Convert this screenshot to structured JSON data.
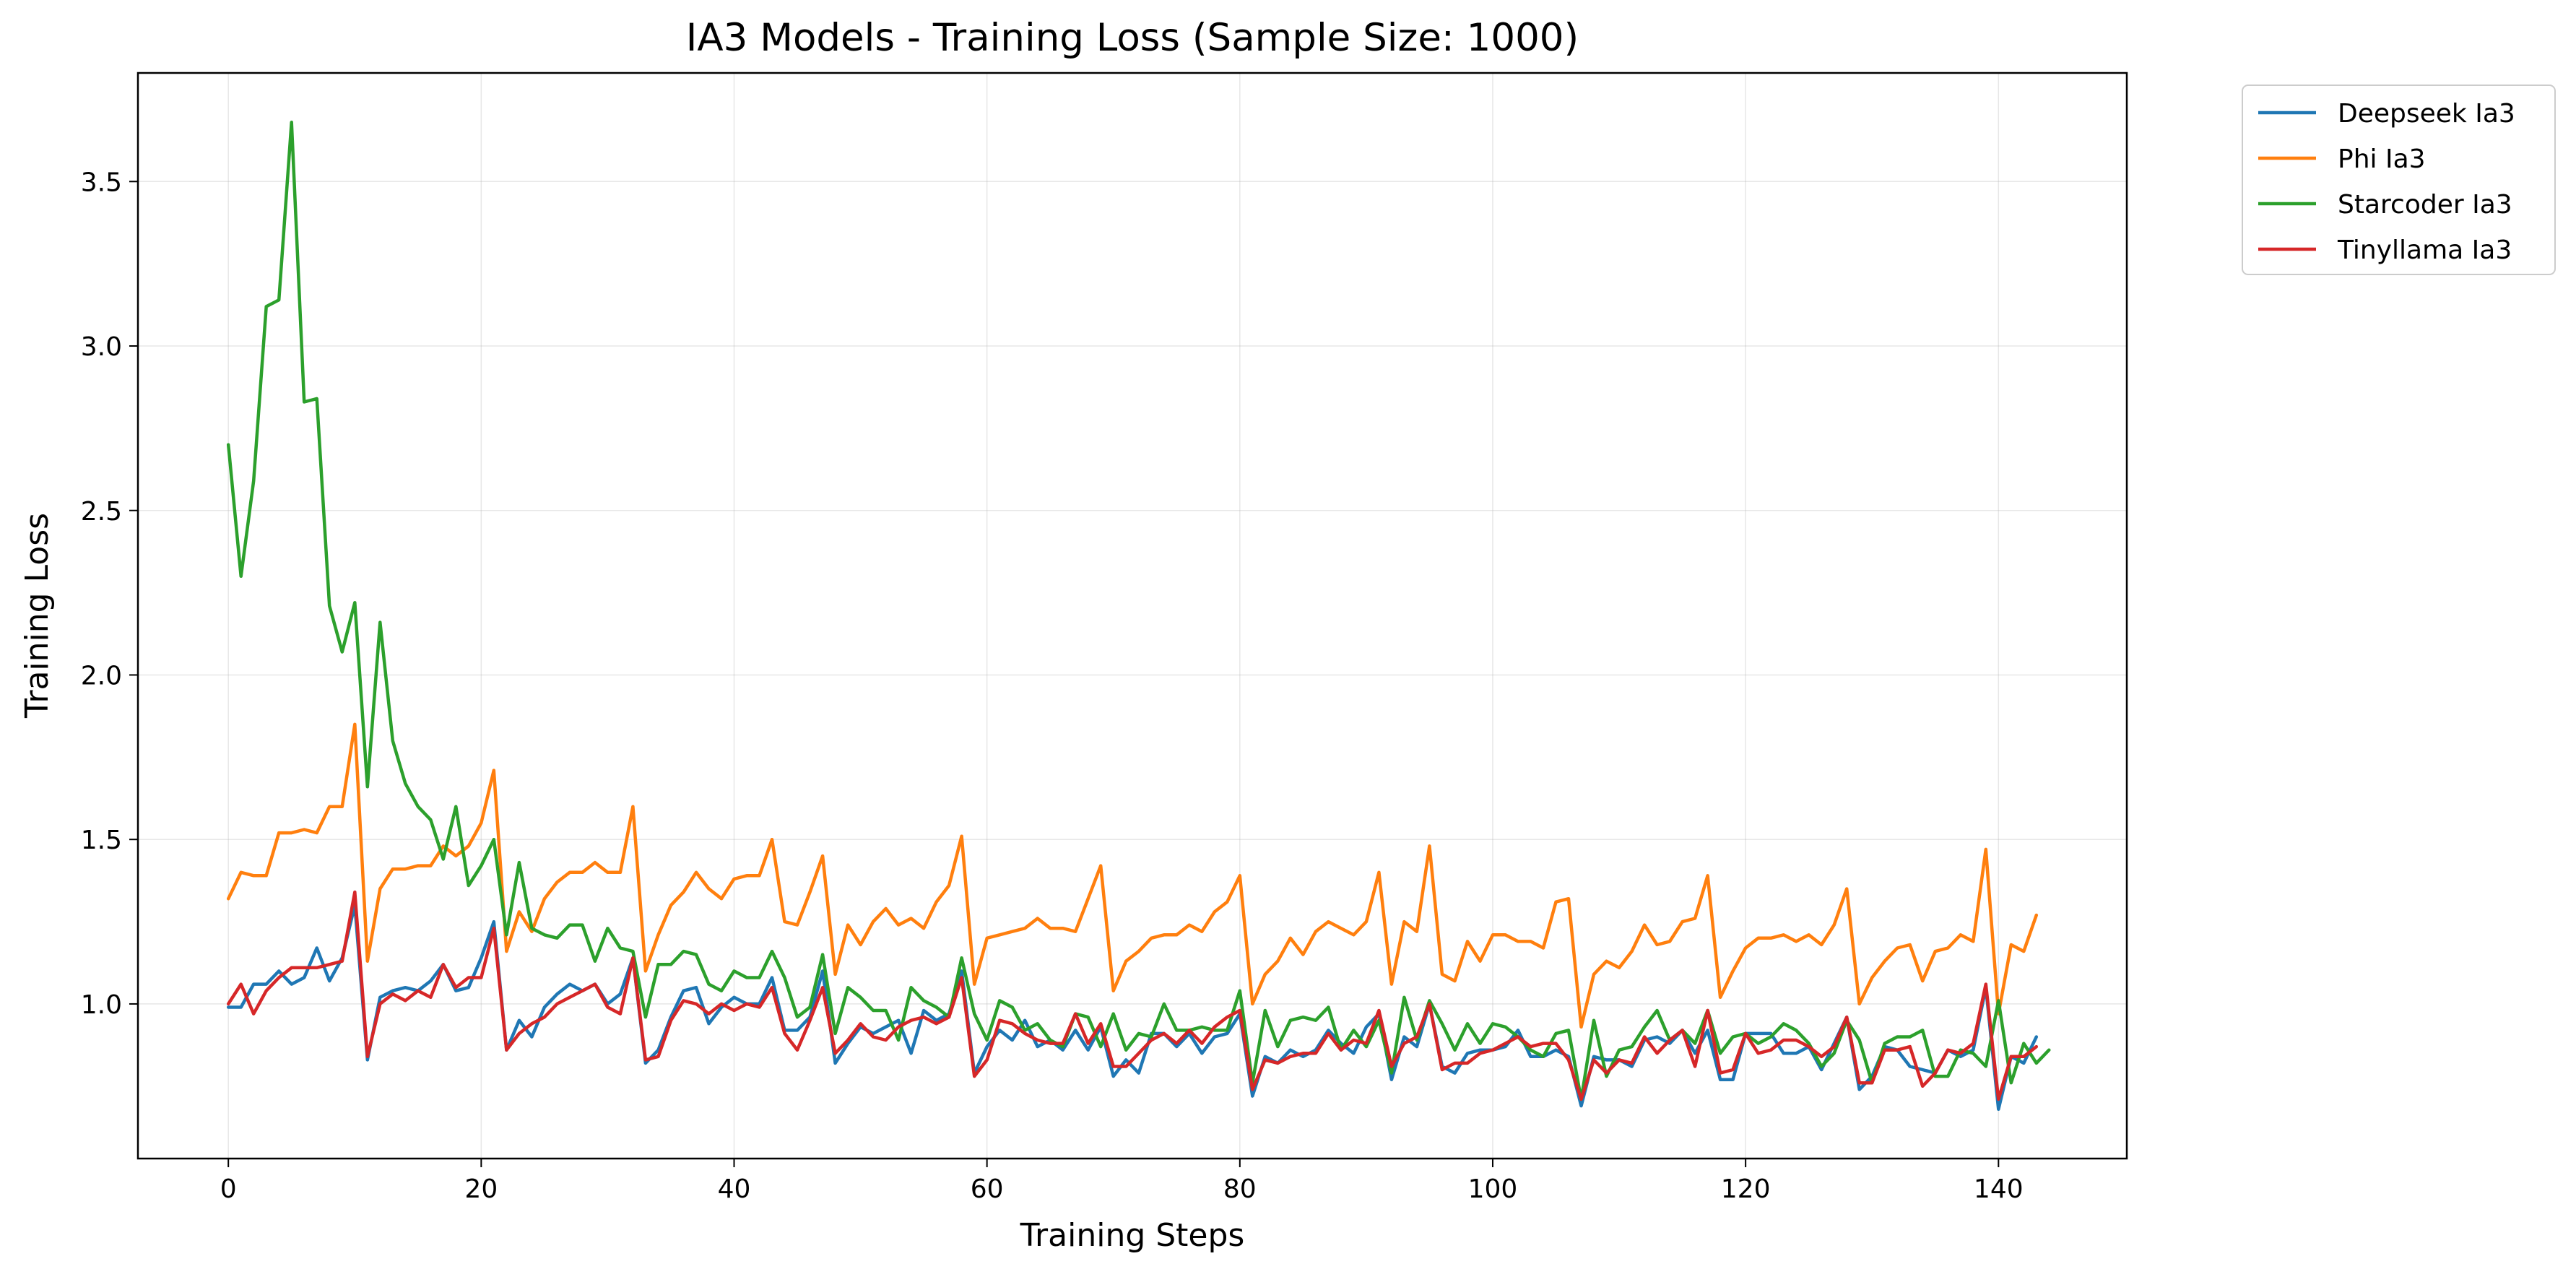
{
  "chart_data": {
    "type": "line",
    "title": "IA3 Models - Training Loss (Sample Size: 1000)",
    "xlabel": "Training Steps",
    "ylabel": "Training Loss",
    "xlim": [
      -7.15,
      150.15
    ],
    "ylim": [
      0.53,
      3.83
    ],
    "xticks": [
      0,
      20,
      40,
      60,
      80,
      100,
      120,
      140
    ],
    "yticks": [
      1.0,
      1.5,
      2.0,
      2.5,
      3.0,
      3.5
    ],
    "ytick_labels": [
      "1.0",
      "1.5",
      "2.0",
      "2.5",
      "3.0",
      "3.5"
    ],
    "grid": true,
    "legend_position": "outside top-right",
    "series": [
      {
        "name": "Deepseek Ia3",
        "color": "#1f77b4",
        "values": [
          0.99,
          0.99,
          1.06,
          1.06,
          1.1,
          1.06,
          1.08,
          1.17,
          1.07,
          1.14,
          1.3,
          0.83,
          1.02,
          1.04,
          1.05,
          1.04,
          1.07,
          1.12,
          1.04,
          1.05,
          1.14,
          1.25,
          0.86,
          0.95,
          0.9,
          0.99,
          1.03,
          1.06,
          1.04,
          1.06,
          1.0,
          1.03,
          1.14,
          0.82,
          0.86,
          0.96,
          1.04,
          1.05,
          0.94,
          0.99,
          1.02,
          1.0,
          1.0,
          1.08,
          0.92,
          0.92,
          0.96,
          1.1,
          0.82,
          0.88,
          0.93,
          0.91,
          0.93,
          0.95,
          0.85,
          0.98,
          0.95,
          0.97,
          1.1,
          0.79,
          0.87,
          0.92,
          0.89,
          0.95,
          0.87,
          0.89,
          0.86,
          0.92,
          0.86,
          0.93,
          0.78,
          0.83,
          0.79,
          0.91,
          0.91,
          0.87,
          0.91,
          0.85,
          0.9,
          0.91,
          0.97,
          0.72,
          0.84,
          0.82,
          0.86,
          0.84,
          0.86,
          0.92,
          0.88,
          0.85,
          0.93,
          0.97,
          0.77,
          0.9,
          0.87,
          1.0,
          0.81,
          0.79,
          0.85,
          0.86,
          0.86,
          0.87,
          0.92,
          0.84,
          0.84,
          0.86,
          0.84,
          0.69,
          0.84,
          0.83,
          0.83,
          0.81,
          0.89,
          0.9,
          0.88,
          0.92,
          0.85,
          0.92,
          0.77,
          0.77,
          0.91,
          0.91,
          0.91,
          0.85,
          0.85,
          0.87,
          0.8,
          0.88,
          0.96,
          0.74,
          0.78,
          0.87,
          0.86,
          0.81,
          0.8,
          0.79,
          0.86,
          0.84,
          0.86,
          1.05,
          0.68,
          0.84,
          0.82,
          0.9
        ]
      },
      {
        "name": "Phi Ia3",
        "color": "#ff7f0e",
        "values": [
          1.32,
          1.4,
          1.39,
          1.39,
          1.52,
          1.52,
          1.53,
          1.52,
          1.6,
          1.6,
          1.85,
          1.13,
          1.35,
          1.41,
          1.41,
          1.42,
          1.42,
          1.48,
          1.45,
          1.48,
          1.55,
          1.71,
          1.16,
          1.28,
          1.22,
          1.32,
          1.37,
          1.4,
          1.4,
          1.43,
          1.4,
          1.4,
          1.6,
          1.1,
          1.21,
          1.3,
          1.34,
          1.4,
          1.35,
          1.32,
          1.38,
          1.39,
          1.39,
          1.5,
          1.25,
          1.24,
          1.34,
          1.45,
          1.09,
          1.24,
          1.18,
          1.25,
          1.29,
          1.24,
          1.26,
          1.23,
          1.31,
          1.36,
          1.51,
          1.06,
          1.2,
          1.21,
          1.22,
          1.23,
          1.26,
          1.23,
          1.23,
          1.22,
          1.32,
          1.42,
          1.04,
          1.13,
          1.16,
          1.2,
          1.21,
          1.21,
          1.24,
          1.22,
          1.28,
          1.31,
          1.39,
          1.0,
          1.09,
          1.13,
          1.2,
          1.15,
          1.22,
          1.25,
          1.23,
          1.21,
          1.25,
          1.4,
          1.06,
          1.25,
          1.22,
          1.48,
          1.09,
          1.07,
          1.19,
          1.13,
          1.21,
          1.21,
          1.19,
          1.19,
          1.17,
          1.31,
          1.32,
          0.93,
          1.09,
          1.13,
          1.11,
          1.16,
          1.24,
          1.18,
          1.19,
          1.25,
          1.26,
          1.39,
          1.02,
          1.1,
          1.17,
          1.2,
          1.2,
          1.21,
          1.19,
          1.21,
          1.18,
          1.24,
          1.35,
          1.0,
          1.08,
          1.13,
          1.17,
          1.18,
          1.07,
          1.16,
          1.17,
          1.21,
          1.19,
          1.47,
          0.97,
          1.18,
          1.16,
          1.27
        ]
      },
      {
        "name": "Starcoder Ia3",
        "color": "#2ca02c",
        "values": [
          2.7,
          2.3,
          2.59,
          3.12,
          3.14,
          3.68,
          2.83,
          2.84,
          2.21,
          2.07,
          2.22,
          1.66,
          2.16,
          1.8,
          1.67,
          1.6,
          1.56,
          1.44,
          1.6,
          1.36,
          1.42,
          1.5,
          1.21,
          1.43,
          1.23,
          1.21,
          1.2,
          1.24,
          1.24,
          1.13,
          1.23,
          1.17,
          1.16,
          0.96,
          1.12,
          1.12,
          1.16,
          1.15,
          1.06,
          1.04,
          1.1,
          1.08,
          1.08,
          1.16,
          1.08,
          0.96,
          0.99,
          1.15,
          0.91,
          1.05,
          1.02,
          0.98,
          0.98,
          0.89,
          1.05,
          1.01,
          0.99,
          0.96,
          1.14,
          0.97,
          0.89,
          1.01,
          0.99,
          0.92,
          0.94,
          0.89,
          0.87,
          0.97,
          0.96,
          0.87,
          0.97,
          0.86,
          0.91,
          0.9,
          1.0,
          0.92,
          0.92,
          0.93,
          0.92,
          0.92,
          1.04,
          0.76,
          0.98,
          0.87,
          0.95,
          0.96,
          0.95,
          0.99,
          0.86,
          0.92,
          0.87,
          0.95,
          0.79,
          1.02,
          0.89,
          1.01,
          0.94,
          0.86,
          0.94,
          0.88,
          0.94,
          0.93,
          0.9,
          0.86,
          0.84,
          0.91,
          0.92,
          0.71,
          0.95,
          0.78,
          0.86,
          0.87,
          0.93,
          0.98,
          0.89,
          0.92,
          0.88,
          0.98,
          0.85,
          0.9,
          0.91,
          0.88,
          0.9,
          0.94,
          0.92,
          0.88,
          0.81,
          0.85,
          0.95,
          0.89,
          0.76,
          0.88,
          0.9,
          0.9,
          0.92,
          0.78,
          0.78,
          0.86,
          0.85,
          0.81,
          1.01,
          0.76,
          0.88,
          0.82,
          0.86
        ]
      },
      {
        "name": "Tinyllama Ia3",
        "color": "#d62728",
        "values": [
          1.0,
          1.06,
          0.97,
          1.04,
          1.08,
          1.11,
          1.11,
          1.11,
          1.12,
          1.13,
          1.34,
          0.84,
          1.0,
          1.03,
          1.01,
          1.04,
          1.02,
          1.12,
          1.05,
          1.08,
          1.08,
          1.23,
          0.86,
          0.91,
          0.94,
          0.96,
          1.0,
          1.02,
          1.04,
          1.06,
          0.99,
          0.97,
          1.14,
          0.83,
          0.84,
          0.95,
          1.01,
          1.0,
          0.97,
          1.0,
          0.98,
          1.0,
          0.99,
          1.05,
          0.91,
          0.86,
          0.95,
          1.05,
          0.85,
          0.89,
          0.94,
          0.9,
          0.89,
          0.93,
          0.95,
          0.96,
          0.94,
          0.96,
          1.08,
          0.78,
          0.83,
          0.95,
          0.94,
          0.91,
          0.89,
          0.88,
          0.88,
          0.97,
          0.88,
          0.94,
          0.81,
          0.81,
          0.85,
          0.89,
          0.91,
          0.88,
          0.92,
          0.88,
          0.93,
          0.96,
          0.98,
          0.74,
          0.83,
          0.82,
          0.84,
          0.85,
          0.85,
          0.91,
          0.86,
          0.89,
          0.88,
          0.98,
          0.81,
          0.88,
          0.9,
          1.0,
          0.8,
          0.82,
          0.82,
          0.85,
          0.86,
          0.88,
          0.9,
          0.87,
          0.88,
          0.88,
          0.83,
          0.71,
          0.83,
          0.79,
          0.83,
          0.82,
          0.9,
          0.85,
          0.89,
          0.92,
          0.81,
          0.98,
          0.79,
          0.8,
          0.91,
          0.85,
          0.86,
          0.89,
          0.89,
          0.87,
          0.84,
          0.87,
          0.96,
          0.76,
          0.76,
          0.86,
          0.86,
          0.87,
          0.75,
          0.79,
          0.86,
          0.85,
          0.88,
          1.06,
          0.71,
          0.84,
          0.84,
          0.87
        ]
      }
    ]
  }
}
